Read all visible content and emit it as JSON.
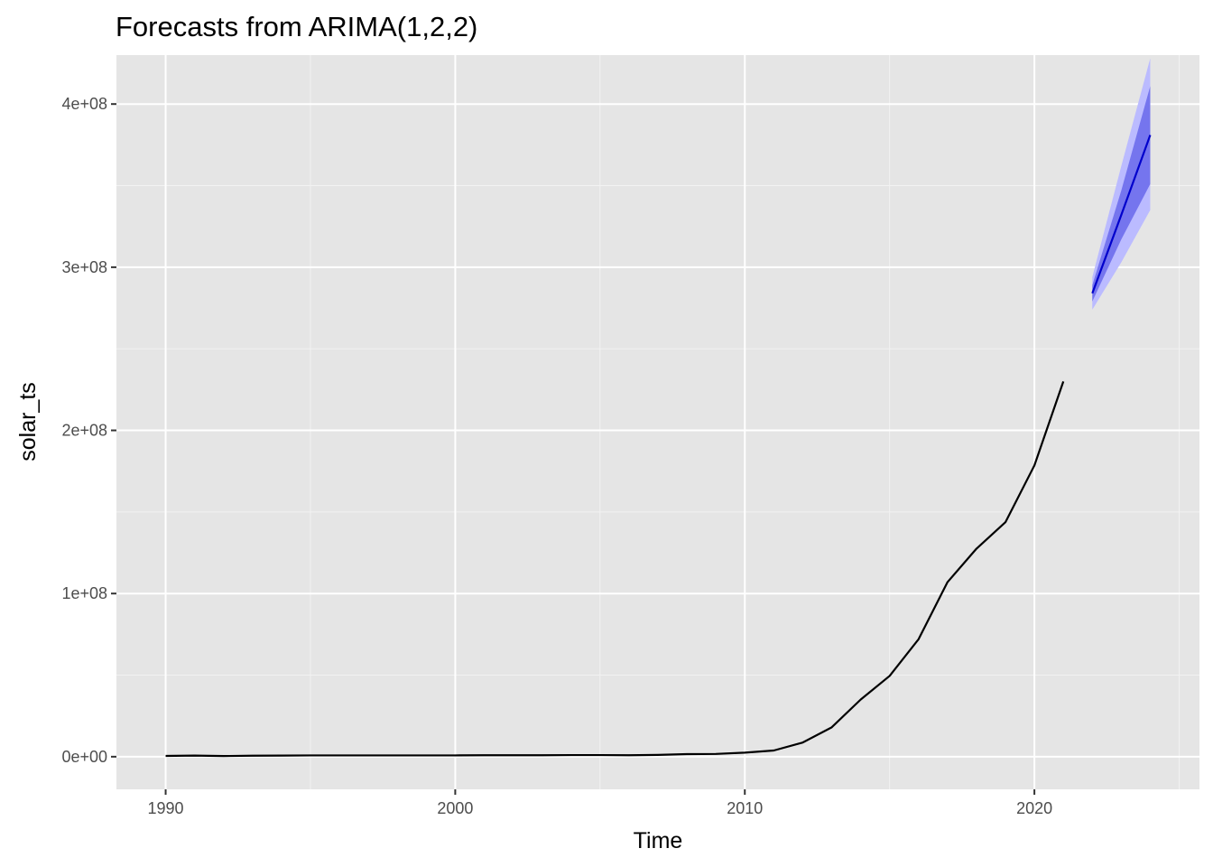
{
  "chart_data": {
    "type": "line",
    "title": "Forecasts from ARIMA(1,2,2)",
    "xlabel": "Time",
    "ylabel": "solar_ts",
    "xlim": [
      1988.3,
      2025.7
    ],
    "ylim": [
      -20000000,
      430000000
    ],
    "x_ticks": [
      {
        "value": 1990,
        "label": "1990"
      },
      {
        "value": 2000,
        "label": "2000"
      },
      {
        "value": 2010,
        "label": "2010"
      },
      {
        "value": 2020,
        "label": "2020"
      }
    ],
    "y_ticks": [
      {
        "value": 0,
        "label": "0e+00"
      },
      {
        "value": 100000000,
        "label": "1e+08"
      },
      {
        "value": 200000000,
        "label": "2e+08"
      },
      {
        "value": 300000000,
        "label": "3e+08"
      },
      {
        "value": 400000000,
        "label": "4e+08"
      }
    ],
    "grid": true,
    "colors": {
      "panel": "#e5e5e5",
      "grid_major": "#ffffff",
      "grid_minor": "#f2f2f2",
      "history_line": "#000000",
      "forecast_line": "#0000cc",
      "band_95": "#bbbbff",
      "band_80": "#7575ee"
    },
    "series": [
      {
        "x": [
          1990,
          1991,
          1992,
          1993,
          1994,
          1995,
          1996,
          1997,
          1998,
          1999,
          2000,
          2001,
          2002,
          2003,
          2004,
          2005,
          2006,
          2007,
          2008,
          2009,
          2010,
          2011,
          2012,
          2013,
          2014,
          2015,
          2016,
          2017,
          2018,
          2019,
          2020,
          2021
        ],
        "values": [
          500000,
          700000,
          400000,
          600000,
          700000,
          800000,
          800000,
          800000,
          800000,
          800000,
          800000,
          900000,
          900000,
          900000,
          1000000,
          1000000,
          900000,
          1100000,
          1600000,
          1700000,
          2500000,
          3800000,
          8700000,
          18000000,
          35000000,
          49500000,
          72000000,
          107000000,
          127500000,
          143700000,
          178500000,
          230000000
        ]
      },
      {
        "x": [
          2022,
          2023,
          2024
        ],
        "values": [
          284000000,
          332000000,
          381000000
        ],
        "lo80": [
          279000000,
          317000000,
          351000000
        ],
        "hi80": [
          289000000,
          347000000,
          411000000
        ],
        "lo95": [
          274000000,
          303000000,
          335000000
        ],
        "hi95": [
          294000000,
          362000000,
          428000000
        ]
      }
    ]
  }
}
